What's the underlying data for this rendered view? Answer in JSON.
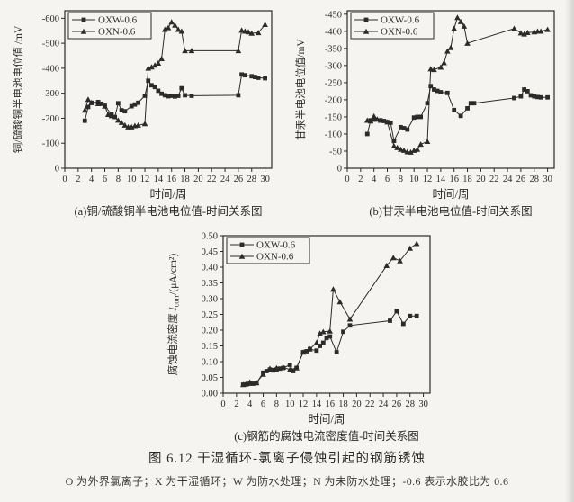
{
  "page": {
    "figure_title": "图 6.12  干湿循环-氯离子侵蚀引起的钢筋锈蚀",
    "note": "O 为外界氯离子；X 为干湿循环；W 为防水处理；N 为未防水处理；-0.6 表示水胶比为 0.6"
  },
  "colors": {
    "ink": "#2b2b2b",
    "paper": "#f5f4f0"
  },
  "chart_data": [
    {
      "id": "a",
      "type": "line",
      "caption": "(a)铜/硫酸铜半电池电位值-时间关系图",
      "xlabel": "时间/周",
      "ylabel_segments": [
        {
          "text": "铜/硫酸铜半电池电位值 /mV"
        }
      ],
      "xlim": [
        0,
        31
      ],
      "ylim": [
        0,
        -630
      ],
      "xtick_values": [
        0,
        2,
        4,
        6,
        8,
        10,
        12,
        14,
        16,
        18,
        20,
        22,
        24,
        26,
        28,
        30
      ],
      "ytick_values": [
        0,
        -100,
        -200,
        -300,
        -400,
        -500,
        -600
      ],
      "ytick_labels": [
        "0",
        "-100",
        "-200",
        "-300",
        "-400",
        "-500",
        "-600"
      ],
      "legend_position": "top-left",
      "grid": false,
      "series": [
        {
          "name": "OXW-0.6",
          "marker": "square",
          "points": [
            [
              3,
              -190
            ],
            [
              3.5,
              -245
            ],
            [
              4,
              -262
            ],
            [
              5,
              -265
            ],
            [
              5.5,
              -258
            ],
            [
              6,
              -250
            ],
            [
              7,
              -215
            ],
            [
              7.5,
              -205
            ],
            [
              8,
              -260
            ],
            [
              8.5,
              -232
            ],
            [
              9,
              -228
            ],
            [
              10,
              -248
            ],
            [
              10.5,
              -255
            ],
            [
              11,
              -262
            ],
            [
              12,
              -290
            ],
            [
              12.5,
              -350
            ],
            [
              13,
              -332
            ],
            [
              13.5,
              -325
            ],
            [
              14,
              -310
            ],
            [
              14.5,
              -298
            ],
            [
              15,
              -292
            ],
            [
              15.5,
              -288
            ],
            [
              16,
              -290
            ],
            [
              16.5,
              -287
            ],
            [
              17,
              -290
            ],
            [
              17.5,
              -320
            ],
            [
              18,
              -292
            ],
            [
              19,
              -290
            ],
            [
              26,
              -292
            ],
            [
              26.5,
              -375
            ],
            [
              27,
              -372
            ],
            [
              28,
              -368
            ],
            [
              28.5,
              -365
            ],
            [
              29,
              -362
            ],
            [
              30,
              -360
            ]
          ]
        },
        {
          "name": "OXN-0.6",
          "marker": "triangle",
          "points": [
            [
              3,
              -232
            ],
            [
              3.5,
              -275
            ],
            [
              4,
              -262
            ],
            [
              5,
              -258
            ],
            [
              6,
              -248
            ],
            [
              6.5,
              -215
            ],
            [
              7,
              -210
            ],
            [
              8,
              -192
            ],
            [
              8.5,
              -183
            ],
            [
              9,
              -172
            ],
            [
              9.5,
              -165
            ],
            [
              10,
              -165
            ],
            [
              10.5,
              -170
            ],
            [
              11,
              -172
            ],
            [
              12,
              -178
            ],
            [
              12.5,
              -400
            ],
            [
              13,
              -405
            ],
            [
              13.5,
              -412
            ],
            [
              14,
              -420
            ],
            [
              14.5,
              -438
            ],
            [
              15,
              -555
            ],
            [
              15.5,
              -562
            ],
            [
              16,
              -585
            ],
            [
              16.5,
              -572
            ],
            [
              17,
              -555
            ],
            [
              17.5,
              -548
            ],
            [
              18,
              -470
            ],
            [
              19,
              -470
            ],
            [
              26,
              -470
            ],
            [
              26.5,
              -552
            ],
            [
              27,
              -548
            ],
            [
              27.5,
              -545
            ],
            [
              28,
              -540
            ],
            [
              29,
              -542
            ],
            [
              30,
              -575
            ]
          ]
        }
      ]
    },
    {
      "id": "b",
      "type": "line",
      "caption": "(b)甘汞半电池电位值-时间关系图",
      "xlabel": "时间/周",
      "ylabel_segments": [
        {
          "text": "甘汞半电池电位值/mV"
        }
      ],
      "xlim": [
        0,
        31
      ],
      "ylim": [
        0,
        -460
      ],
      "xtick_values": [
        0,
        2,
        4,
        6,
        8,
        10,
        12,
        14,
        16,
        18,
        20,
        22,
        24,
        26,
        28,
        30
      ],
      "ytick_values": [
        0,
        -50,
        -100,
        -150,
        -200,
        -250,
        -300,
        -350,
        -400,
        -450
      ],
      "ytick_labels": [
        "0",
        "-50",
        "-100",
        "-150",
        "-200",
        "-250",
        "-300",
        "-350",
        "-400",
        "-450"
      ],
      "legend_position": "top-left",
      "grid": false,
      "series": [
        {
          "name": "OXW-0.6",
          "marker": "square",
          "points": [
            [
              3,
              -100
            ],
            [
              3.5,
              -140
            ],
            [
              4,
              -142
            ],
            [
              5,
              -140
            ],
            [
              5.5,
              -138
            ],
            [
              6,
              -135
            ],
            [
              6.5,
              -133
            ],
            [
              7,
              -80
            ],
            [
              8,
              -120
            ],
            [
              8.5,
              -117
            ],
            [
              9,
              -113
            ],
            [
              10,
              -148
            ],
            [
              10.5,
              -150
            ],
            [
              11,
              -150
            ],
            [
              12,
              -190
            ],
            [
              12.5,
              -240
            ],
            [
              13,
              -230
            ],
            [
              13.5,
              -226
            ],
            [
              14,
              -222
            ],
            [
              15,
              -220
            ],
            [
              16,
              -170
            ],
            [
              17,
              -153
            ],
            [
              18,
              -175
            ],
            [
              18.5,
              -190
            ],
            [
              19,
              -190
            ],
            [
              25,
              -205
            ],
            [
              26,
              -210
            ],
            [
              26.5,
              -230
            ],
            [
              27,
              -225
            ],
            [
              27.5,
              -213
            ],
            [
              28,
              -210
            ],
            [
              28.5,
              -208
            ],
            [
              29,
              -207
            ],
            [
              30,
              -207
            ]
          ]
        },
        {
          "name": "OXN-0.6",
          "marker": "triangle",
          "points": [
            [
              3,
              -140
            ],
            [
              3.5,
              -138
            ],
            [
              4,
              -152
            ],
            [
              4.5,
              -143
            ],
            [
              5,
              -140
            ],
            [
              6,
              -135
            ],
            [
              7,
              -65
            ],
            [
              7.5,
              -60
            ],
            [
              8,
              -55
            ],
            [
              8.5,
              -52
            ],
            [
              9,
              -48
            ],
            [
              9.5,
              -47
            ],
            [
              10,
              -52
            ],
            [
              10.5,
              -55
            ],
            [
              11,
              -70
            ],
            [
              12,
              -78
            ],
            [
              12.5,
              -290
            ],
            [
              13,
              -288
            ],
            [
              14,
              -295
            ],
            [
              14.5,
              -308
            ],
            [
              15,
              -342
            ],
            [
              15.5,
              -352
            ],
            [
              16,
              -408
            ],
            [
              16.5,
              -440
            ],
            [
              17,
              -428
            ],
            [
              17.5,
              -415
            ],
            [
              18,
              -365
            ],
            [
              25,
              -408
            ],
            [
              26,
              -395
            ],
            [
              26.5,
              -392
            ],
            [
              27,
              -396
            ],
            [
              28,
              -398
            ],
            [
              28.5,
              -400
            ],
            [
              29,
              -400
            ],
            [
              30,
              -405
            ]
          ]
        }
      ]
    },
    {
      "id": "c",
      "type": "line",
      "caption": "(c)钢筋的腐蚀电流密度值-时间关系图",
      "xlabel": "时间/周",
      "ylabel_segments": [
        {
          "text": "腐蚀电流密度 "
        },
        {
          "text": "I",
          "italic": true
        },
        {
          "text": "corr",
          "shift": "sub"
        },
        {
          "text": "/(μA/cm²)"
        }
      ],
      "xlim": [
        0,
        31
      ],
      "ylim": [
        0,
        0.5
      ],
      "xtick_values": [
        0,
        2,
        4,
        6,
        8,
        10,
        12,
        14,
        16,
        18,
        20,
        22,
        24,
        26,
        28,
        30
      ],
      "ytick_values": [
        0,
        0.05,
        0.1,
        0.15,
        0.2,
        0.25,
        0.3,
        0.35,
        0.4,
        0.45,
        0.5
      ],
      "ytick_labels": [
        "0.00",
        "0.05",
        "0.10",
        "0.15",
        "0.20",
        "0.25",
        "0.30",
        "0.35",
        "0.40",
        "0.45",
        "0.50"
      ],
      "legend_position": "top-left",
      "grid": false,
      "series": [
        {
          "name": "OXW-0.6",
          "marker": "square",
          "points": [
            [
              3,
              0.027
            ],
            [
              3.5,
              0.028
            ],
            [
              4,
              0.03
            ],
            [
              4.5,
              0.03
            ],
            [
              5,
              0.032
            ],
            [
              6,
              0.065
            ],
            [
              6.5,
              0.07
            ],
            [
              7,
              0.075
            ],
            [
              7.5,
              0.072
            ],
            [
              8,
              0.075
            ],
            [
              8.5,
              0.078
            ],
            [
              9,
              0.08
            ],
            [
              10,
              0.09
            ],
            [
              10.5,
              0.07
            ],
            [
              11,
              0.08
            ],
            [
              12,
              0.13
            ],
            [
              12.5,
              0.133
            ],
            [
              13,
              0.14
            ],
            [
              14,
              0.135
            ],
            [
              14.5,
              0.15
            ],
            [
              15,
              0.16
            ],
            [
              15.5,
              0.175
            ],
            [
              16,
              0.18
            ],
            [
              17,
              0.13
            ],
            [
              18,
              0.195
            ],
            [
              19,
              0.215
            ],
            [
              25,
              0.23
            ],
            [
              26,
              0.26
            ],
            [
              27,
              0.22
            ],
            [
              28,
              0.245
            ],
            [
              29,
              0.245
            ]
          ]
        },
        {
          "name": "OXN-0.6",
          "marker": "triangle",
          "points": [
            [
              3,
              0.027
            ],
            [
              3.5,
              0.03
            ],
            [
              4,
              0.035
            ],
            [
              5,
              0.033
            ],
            [
              6,
              0.06
            ],
            [
              7,
              0.078
            ],
            [
              8,
              0.08
            ],
            [
              9,
              0.082
            ],
            [
              10,
              0.075
            ],
            [
              11,
              0.08
            ],
            [
              12,
              0.13
            ],
            [
              13,
              0.14
            ],
            [
              14,
              0.16
            ],
            [
              14.5,
              0.19
            ],
            [
              15,
              0.195
            ],
            [
              16,
              0.197
            ],
            [
              16.5,
              0.33
            ],
            [
              17.5,
              0.29
            ],
            [
              19,
              0.235
            ],
            [
              24.5,
              0.405
            ],
            [
              25.5,
              0.43
            ],
            [
              26.5,
              0.42
            ],
            [
              28,
              0.46
            ],
            [
              29,
              0.475
            ]
          ]
        }
      ]
    }
  ]
}
